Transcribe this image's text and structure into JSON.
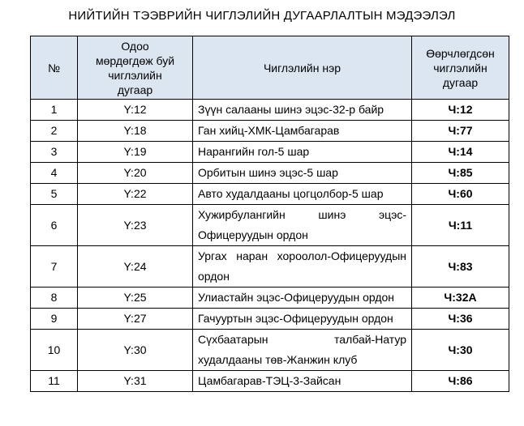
{
  "title": "НИЙТИЙН ТЭЭВРИЙН ЧИГЛЭЛИЙН ДУГААРЛАЛТЫН МЭДЭЭЛЭЛ",
  "table": {
    "header": [
      [
        "№"
      ],
      [
        "Одоо",
        "мөрдөгдөж буй",
        "чиглэлийн",
        "дугаар"
      ],
      [
        "Чиглэлийн нэр"
      ],
      [
        "Өөрчлөгдсөн",
        "чиглэлийн",
        "дугаар"
      ]
    ],
    "rows": [
      [
        1,
        "Y:12",
        "Зүүн салааны шинэ эцэс-32-р байр",
        "Ч:12"
      ],
      [
        2,
        "Y:18",
        "Ган хийц-ХМК-Цамбагарав",
        "Ч:77"
      ],
      [
        3,
        "Y:19",
        "Нарангийн гол-5 шар",
        "Ч:14"
      ],
      [
        4,
        "Y:20",
        "Орбитын шинэ эцэс-5 шар",
        "Ч:85"
      ],
      [
        5,
        "Y:22",
        "Авто худалдааны цогцолбор-5 шар",
        "Ч:60"
      ],
      [
        6,
        "Y:23",
        "Хужирбулангийн шинэ эцэс-Офицеруудын ордон",
        "Ч:11"
      ],
      [
        7,
        "Y:24",
        "Ургах наран хороолол-Офицеруудын ордон",
        "Ч:83"
      ],
      [
        8,
        "Y:25",
        "Улиастайн эцэс-Офицеруудын ордон",
        "Ч:32А"
      ],
      [
        9,
        "Y:27",
        "Гачууртын эцэс-Офицеруудын ордон",
        "Ч:36"
      ],
      [
        10,
        "Y:30",
        "Сүхбаатарын талбай-Натур худалдааны төв-Жанжин клуб",
        "Ч:30"
      ],
      [
        11,
        "Y:31",
        "Цамбагарав-ТЭЦ-3-Зайсан",
        "Ч:86"
      ]
    ]
  }
}
